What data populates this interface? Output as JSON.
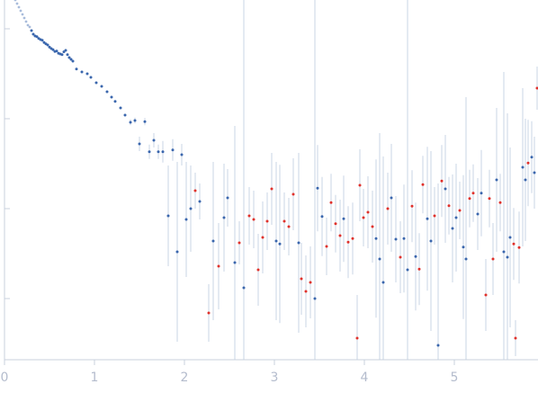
{
  "chart_data": {
    "type": "scatter",
    "title": "",
    "xlabel": "",
    "ylabel": "",
    "xlim": [
      0,
      5.93
    ],
    "ylim": [
      0,
      1
    ],
    "grid": false,
    "legend": "none",
    "x_ticks": [
      "0",
      "1",
      "2",
      "3",
      "4",
      "5"
    ],
    "x_tick_values": [
      0,
      1,
      2,
      3,
      4,
      5
    ],
    "y_tick_values": [
      0.92,
      0.67,
      0.42,
      0.17
    ],
    "colors": {
      "positive": "#3a66ad",
      "negative": "#e0312b",
      "faint": "#a9bcdb",
      "errorbar": "#c9d4e6",
      "axis": "#c9d1de",
      "ticklabel": "#b4bccd"
    },
    "faint_points": [
      [
        0.12,
        1.0
      ],
      [
        0.14,
        0.99
      ],
      [
        0.16,
        0.98
      ],
      [
        0.18,
        0.97
      ],
      [
        0.2,
        0.96
      ],
      [
        0.22,
        0.95
      ],
      [
        0.24,
        0.94
      ],
      [
        0.26,
        0.93
      ],
      [
        0.28,
        0.925
      ]
    ],
    "points": [
      {
        "x": 0.3,
        "y": 0.915,
        "e": 0,
        "s": 1
      },
      {
        "x": 0.32,
        "y": 0.905,
        "e": 0,
        "s": 1
      },
      {
        "x": 0.34,
        "y": 0.9,
        "e": 0,
        "s": 1
      },
      {
        "x": 0.36,
        "y": 0.898,
        "e": 0,
        "s": 1
      },
      {
        "x": 0.38,
        "y": 0.893,
        "e": 0,
        "s": 1
      },
      {
        "x": 0.4,
        "y": 0.89,
        "e": 0,
        "s": 1
      },
      {
        "x": 0.42,
        "y": 0.888,
        "e": 0,
        "s": 1
      },
      {
        "x": 0.44,
        "y": 0.882,
        "e": 0,
        "s": 1
      },
      {
        "x": 0.46,
        "y": 0.878,
        "e": 0,
        "s": 1
      },
      {
        "x": 0.48,
        "y": 0.875,
        "e": 0,
        "s": 1
      },
      {
        "x": 0.5,
        "y": 0.869,
        "e": 0,
        "s": 1
      },
      {
        "x": 0.52,
        "y": 0.865,
        "e": 0,
        "s": 1
      },
      {
        "x": 0.54,
        "y": 0.862,
        "e": 0,
        "s": 1
      },
      {
        "x": 0.56,
        "y": 0.857,
        "e": 0,
        "s": 1
      },
      {
        "x": 0.58,
        "y": 0.858,
        "e": 0,
        "s": 1
      },
      {
        "x": 0.6,
        "y": 0.852,
        "e": 0,
        "s": 1
      },
      {
        "x": 0.62,
        "y": 0.85,
        "e": 0,
        "s": 1
      },
      {
        "x": 0.64,
        "y": 0.848,
        "e": 0,
        "s": 1
      },
      {
        "x": 0.66,
        "y": 0.856,
        "e": 0,
        "s": 1
      },
      {
        "x": 0.68,
        "y": 0.86,
        "e": 0,
        "s": 1
      },
      {
        "x": 0.7,
        "y": 0.848,
        "e": 0,
        "s": 1
      },
      {
        "x": 0.72,
        "y": 0.84,
        "e": 0,
        "s": 1
      },
      {
        "x": 0.74,
        "y": 0.835,
        "e": 0,
        "s": 1
      },
      {
        "x": 0.76,
        "y": 0.83,
        "e": 0,
        "s": 1
      },
      {
        "x": 0.8,
        "y": 0.808,
        "e": 0,
        "s": 1
      },
      {
        "x": 0.86,
        "y": 0.8,
        "e": 0,
        "s": 1
      },
      {
        "x": 0.92,
        "y": 0.795,
        "e": 0,
        "s": 1
      },
      {
        "x": 0.96,
        "y": 0.785,
        "e": 0,
        "s": 1
      },
      {
        "x": 1.02,
        "y": 0.77,
        "e": 0,
        "s": 1
      },
      {
        "x": 1.08,
        "y": 0.76,
        "e": 0,
        "s": 1
      },
      {
        "x": 1.14,
        "y": 0.745,
        "e": 0,
        "s": 1
      },
      {
        "x": 1.19,
        "y": 0.73,
        "e": 0,
        "s": 1
      },
      {
        "x": 1.23,
        "y": 0.718,
        "e": 0,
        "s": 1
      },
      {
        "x": 1.29,
        "y": 0.7,
        "e": 0,
        "s": 1
      },
      {
        "x": 1.34,
        "y": 0.68,
        "e": 0,
        "s": 1
      },
      {
        "x": 1.4,
        "y": 0.66,
        "e": 0.008,
        "s": 1
      },
      {
        "x": 1.45,
        "y": 0.665,
        "e": 0.008,
        "s": 1
      },
      {
        "x": 1.5,
        "y": 0.6,
        "e": 0.02,
        "s": 1
      },
      {
        "x": 1.56,
        "y": 0.662,
        "e": 0.01,
        "s": 1
      },
      {
        "x": 1.61,
        "y": 0.578,
        "e": 0.02,
        "s": 1
      },
      {
        "x": 1.66,
        "y": 0.61,
        "e": 0.02,
        "s": 1
      },
      {
        "x": 1.71,
        "y": 0.578,
        "e": 0.02,
        "s": 1
      },
      {
        "x": 1.76,
        "y": 0.578,
        "e": 0.03,
        "s": 1
      },
      {
        "x": 1.82,
        "y": 0.4,
        "e": 0.14,
        "s": 1
      },
      {
        "x": 1.87,
        "y": 0.583,
        "e": 0.03,
        "s": 1
      },
      {
        "x": 1.92,
        "y": 0.3,
        "e": 0.25,
        "s": 1
      },
      {
        "x": 1.97,
        "y": 0.57,
        "e": 0.03,
        "s": 1
      },
      {
        "x": 2.02,
        "y": 0.39,
        "e": 0.16,
        "s": 1
      },
      {
        "x": 2.07,
        "y": 0.42,
        "e": 0.12,
        "s": 1
      },
      {
        "x": 2.12,
        "y": 0.47,
        "e": 0.05,
        "s": -1
      },
      {
        "x": 2.17,
        "y": 0.44,
        "e": 0.05,
        "s": 1
      },
      {
        "x": 2.27,
        "y": 0.13,
        "e": 0.08,
        "s": -1
      },
      {
        "x": 2.32,
        "y": 0.33,
        "e": 0.22,
        "s": 1
      },
      {
        "x": 2.38,
        "y": 0.26,
        "e": 0.12,
        "s": -1
      },
      {
        "x": 2.44,
        "y": 0.395,
        "e": 0.15,
        "s": 1
      },
      {
        "x": 2.48,
        "y": 0.45,
        "e": 0.08,
        "s": 1
      },
      {
        "x": 2.56,
        "y": 0.27,
        "e": 0.38,
        "s": 1
      },
      {
        "x": 2.61,
        "y": 0.325,
        "e": 0.06,
        "s": -1
      },
      {
        "x": 2.66,
        "y": 0.2,
        "e": 0.9,
        "s": 1
      },
      {
        "x": 2.72,
        "y": 0.4,
        "e": 0.08,
        "s": -1
      },
      {
        "x": 2.77,
        "y": 0.39,
        "e": 0.08,
        "s": -1
      },
      {
        "x": 2.82,
        "y": 0.25,
        "e": 0.1,
        "s": -1
      },
      {
        "x": 2.87,
        "y": 0.34,
        "e": 0.1,
        "s": -1
      },
      {
        "x": 2.92,
        "y": 0.385,
        "e": 0.08,
        "s": -1
      },
      {
        "x": 2.97,
        "y": 0.475,
        "e": 0.1,
        "s": -1
      },
      {
        "x": 3.02,
        "y": 0.33,
        "e": 0.22,
        "s": 1
      },
      {
        "x": 3.06,
        "y": 0.322,
        "e": 0.22,
        "s": 1
      },
      {
        "x": 3.11,
        "y": 0.385,
        "e": 0.08,
        "s": -1
      },
      {
        "x": 3.16,
        "y": 0.37,
        "e": 0.08,
        "s": -1
      },
      {
        "x": 3.21,
        "y": 0.46,
        "e": 0.1,
        "s": -1
      },
      {
        "x": 3.27,
        "y": 0.325,
        "e": 0.25,
        "s": 1
      },
      {
        "x": 3.3,
        "y": 0.225,
        "e": 0.1,
        "s": -1
      },
      {
        "x": 3.35,
        "y": 0.19,
        "e": 0.1,
        "s": -1
      },
      {
        "x": 3.4,
        "y": 0.215,
        "e": 0.1,
        "s": -1
      },
      {
        "x": 3.45,
        "y": 0.17,
        "e": 0.95,
        "s": 1
      },
      {
        "x": 3.48,
        "y": 0.477,
        "e": 0.12,
        "s": 1
      },
      {
        "x": 3.53,
        "y": 0.398,
        "e": 0.11,
        "s": 1
      },
      {
        "x": 3.58,
        "y": 0.315,
        "e": 0.08,
        "s": -1
      },
      {
        "x": 3.63,
        "y": 0.437,
        "e": 0.08,
        "s": -1
      },
      {
        "x": 3.68,
        "y": 0.378,
        "e": 0.08,
        "s": -1
      },
      {
        "x": 3.73,
        "y": 0.345,
        "e": 0.1,
        "s": -1
      },
      {
        "x": 3.77,
        "y": 0.392,
        "e": 0.12,
        "s": 1
      },
      {
        "x": 3.82,
        "y": 0.327,
        "e": 0.1,
        "s": -1
      },
      {
        "x": 3.87,
        "y": 0.337,
        "e": 0.1,
        "s": -1
      },
      {
        "x": 3.92,
        "y": 0.06,
        "e": 0.12,
        "s": -1
      },
      {
        "x": 3.95,
        "y": 0.485,
        "e": 0.1,
        "s": -1
      },
      {
        "x": 3.99,
        "y": 0.395,
        "e": 0.08,
        "s": -1
      },
      {
        "x": 4.04,
        "y": 0.41,
        "e": 0.1,
        "s": -1
      },
      {
        "x": 4.09,
        "y": 0.37,
        "e": 0.1,
        "s": -1
      },
      {
        "x": 4.13,
        "y": 0.337,
        "e": 0.22,
        "s": 1
      },
      {
        "x": 4.17,
        "y": 0.28,
        "e": 0.35,
        "s": 1
      },
      {
        "x": 4.21,
        "y": 0.215,
        "e": 0.35,
        "s": 1
      },
      {
        "x": 4.26,
        "y": 0.42,
        "e": 0.1,
        "s": -1
      },
      {
        "x": 4.3,
        "y": 0.45,
        "e": 0.15,
        "s": 1
      },
      {
        "x": 4.35,
        "y": 0.335,
        "e": 0.12,
        "s": 1
      },
      {
        "x": 4.4,
        "y": 0.285,
        "e": 0.1,
        "s": -1
      },
      {
        "x": 4.44,
        "y": 0.337,
        "e": 0.15,
        "s": 1
      },
      {
        "x": 4.48,
        "y": 0.25,
        "e": 0.8,
        "s": 1
      },
      {
        "x": 4.53,
        "y": 0.427,
        "e": 0.1,
        "s": -1
      },
      {
        "x": 4.57,
        "y": 0.287,
        "e": 0.15,
        "s": 1
      },
      {
        "x": 4.61,
        "y": 0.252,
        "e": 0.1,
        "s": -1
      },
      {
        "x": 4.65,
        "y": 0.487,
        "e": 0.08,
        "s": -1
      },
      {
        "x": 4.7,
        "y": 0.392,
        "e": 0.2,
        "s": 1
      },
      {
        "x": 4.74,
        "y": 0.33,
        "e": 0.25,
        "s": 1
      },
      {
        "x": 4.78,
        "y": 0.4,
        "e": 0.08,
        "s": -1
      },
      {
        "x": 4.82,
        "y": 0.04,
        "e": 0.45,
        "s": 1
      },
      {
        "x": 4.86,
        "y": 0.497,
        "e": 0.1,
        "s": -1
      },
      {
        "x": 4.9,
        "y": 0.475,
        "e": 0.15,
        "s": 1
      },
      {
        "x": 4.94,
        "y": 0.428,
        "e": 0.08,
        "s": -1
      },
      {
        "x": 4.98,
        "y": 0.365,
        "e": 0.15,
        "s": 1
      },
      {
        "x": 5.02,
        "y": 0.395,
        "e": 0.15,
        "s": 1
      },
      {
        "x": 5.06,
        "y": 0.415,
        "e": 0.08,
        "s": -1
      },
      {
        "x": 5.1,
        "y": 0.313,
        "e": 0.2,
        "s": 1
      },
      {
        "x": 5.13,
        "y": 0.28,
        "e": 0.45,
        "s": 1
      },
      {
        "x": 5.17,
        "y": 0.448,
        "e": 0.08,
        "s": -1
      },
      {
        "x": 5.21,
        "y": 0.463,
        "e": 0.08,
        "s": -1
      },
      {
        "x": 5.26,
        "y": 0.405,
        "e": 0.1,
        "s": 1
      },
      {
        "x": 5.3,
        "y": 0.463,
        "e": 0.12,
        "s": 1
      },
      {
        "x": 5.35,
        "y": 0.18,
        "e": 0.1,
        "s": -1
      },
      {
        "x": 5.39,
        "y": 0.448,
        "e": 0.08,
        "s": -1
      },
      {
        "x": 5.43,
        "y": 0.28,
        "e": 0.1,
        "s": -1
      },
      {
        "x": 5.47,
        "y": 0.5,
        "e": 0.2,
        "s": 1
      },
      {
        "x": 5.51,
        "y": 0.437,
        "e": 0.08,
        "s": -1
      },
      {
        "x": 5.55,
        "y": 0.3,
        "e": 0.5,
        "s": 1
      },
      {
        "x": 5.59,
        "y": 0.285,
        "e": 0.4,
        "s": 1
      },
      {
        "x": 5.62,
        "y": 0.34,
        "e": 0.25,
        "s": 1
      },
      {
        "x": 5.66,
        "y": 0.322,
        "e": 0.1,
        "s": -1
      },
      {
        "x": 5.68,
        "y": 0.06,
        "e": 0.05,
        "s": -1
      },
      {
        "x": 5.72,
        "y": 0.312,
        "e": 0.1,
        "s": -1
      },
      {
        "x": 5.76,
        "y": 0.535,
        "e": 0.22,
        "s": 1
      },
      {
        "x": 5.79,
        "y": 0.5,
        "e": 0.17,
        "s": 1
      },
      {
        "x": 5.82,
        "y": 0.547,
        "e": 0.12,
        "s": -1
      },
      {
        "x": 5.86,
        "y": 0.563,
        "e": 0.1,
        "s": 1
      },
      {
        "x": 5.89,
        "y": 0.52,
        "e": 0.1,
        "s": 1
      },
      {
        "x": 5.92,
        "y": 0.755,
        "e": 0.06,
        "s": -1
      }
    ]
  }
}
